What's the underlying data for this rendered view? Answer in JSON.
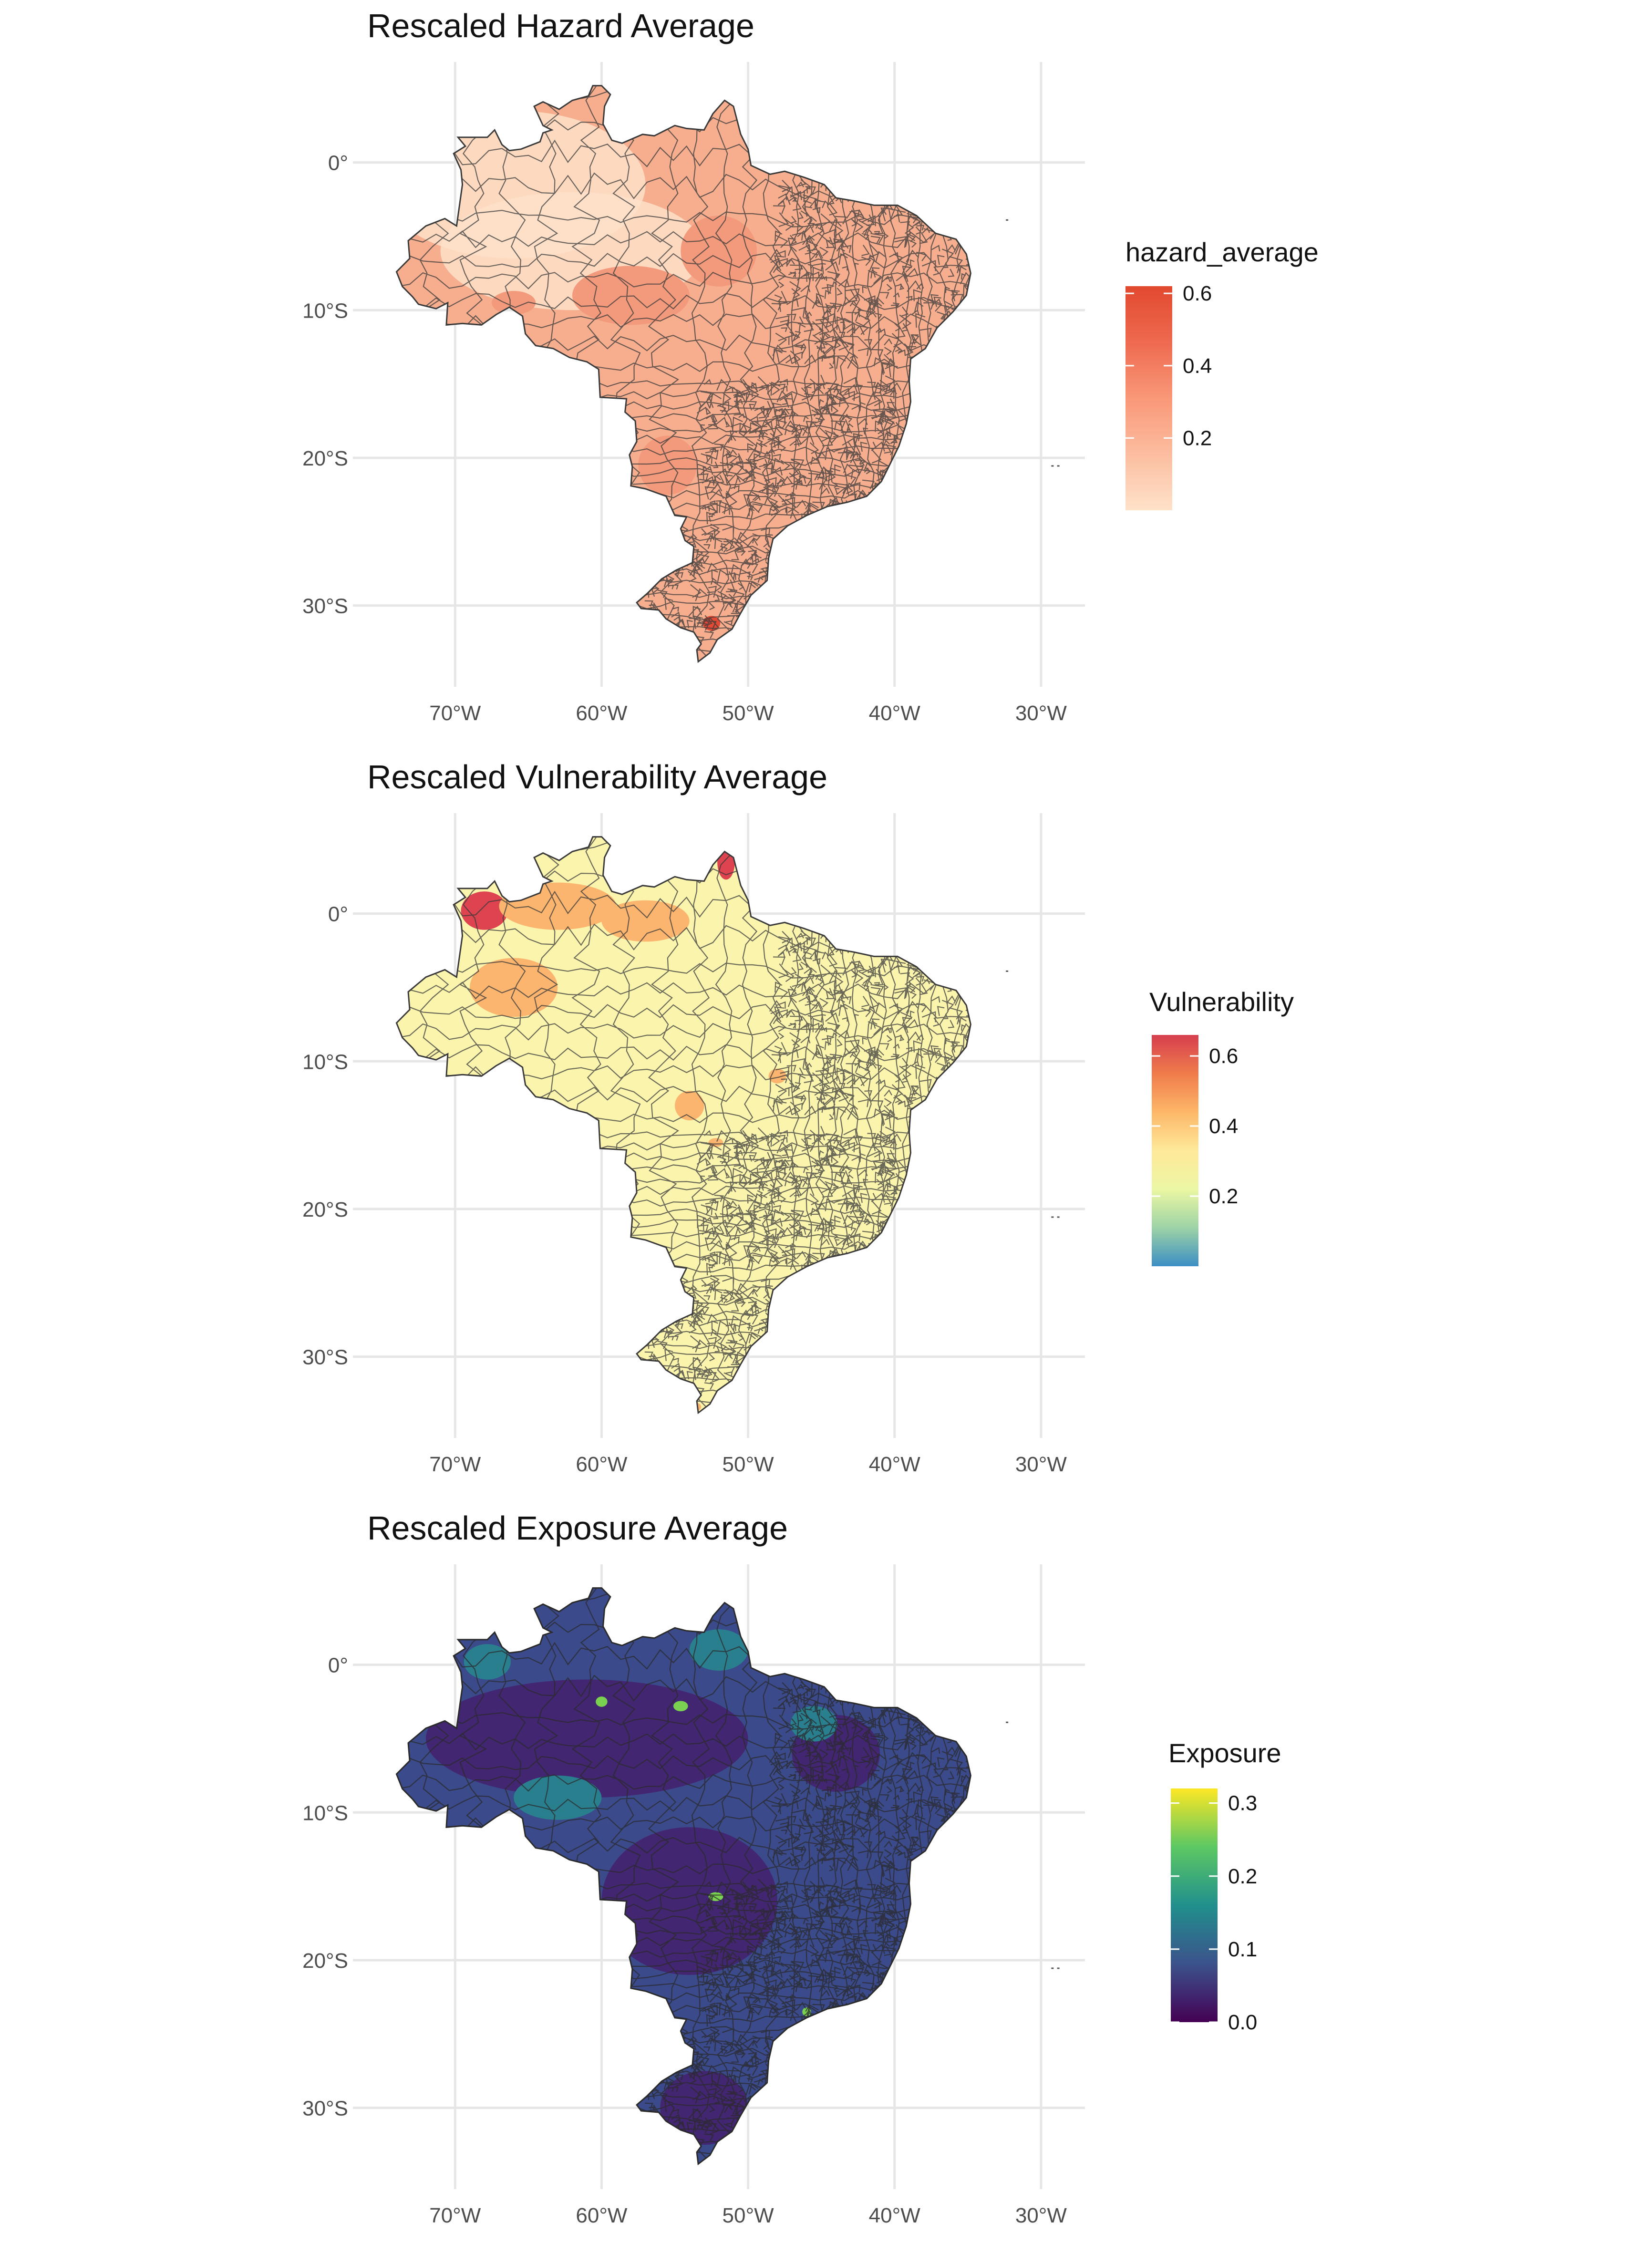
{
  "panels": [
    {
      "id": "hazard",
      "title": "Rescaled Hazard Average",
      "legend_title": "hazard_average",
      "legend_ticks": [
        "0.2",
        "0.4",
        "0.6"
      ],
      "legend_tick_values": [
        0.2,
        0.4,
        0.6
      ],
      "legend_range": [
        0.0,
        0.62
      ],
      "colormap": [
        "#fee2c9",
        "#fcbda0",
        "#f99878",
        "#ee6a50",
        "#e2492f"
      ],
      "fill_base": "#f6ae8f",
      "fill_low": "#fde0c8",
      "fill_mid": "#f39a7c",
      "fill_high": "#e14b35",
      "border_color": "#3a3a3a"
    },
    {
      "id": "vulnerability",
      "title": "Rescaled Vulnerability Average",
      "legend_title": "Vulnerability",
      "legend_ticks": [
        "0.2",
        "0.4",
        "0.6"
      ],
      "legend_tick_values": [
        0.2,
        0.4,
        0.6
      ],
      "legend_range": [
        0.0,
        0.66
      ],
      "colormap": [
        "#3b8fc4",
        "#9dd3a6",
        "#ecf7a3",
        "#fee99a",
        "#fdb768",
        "#f07b4b",
        "#d63f4f"
      ],
      "fill_base": "#fbf4ad",
      "fill_low": "#fef8b8",
      "fill_mid": "#fbb56f",
      "fill_high": "#de4350",
      "border_color": "#3a3a3a"
    },
    {
      "id": "exposure",
      "title": "Rescaled Exposure Average",
      "legend_title": "Exposure",
      "legend_ticks": [
        "0.0",
        "0.1",
        "0.2",
        "0.3"
      ],
      "legend_tick_values": [
        0.0,
        0.1,
        0.2,
        0.3
      ],
      "legend_range": [
        0.0,
        0.32
      ],
      "colormap": [
        "#440154",
        "#3b528b",
        "#21908d",
        "#5dc863",
        "#fde725"
      ],
      "fill_base": "#3a4a8a",
      "fill_low": "#45206c",
      "fill_mid": "#2a7f8e",
      "fill_high": "#7ad151",
      "border_color": "#2a2a2a"
    }
  ],
  "axes": {
    "x_ticks": [
      "70°W",
      "60°W",
      "50°W",
      "40°W",
      "30°W"
    ],
    "x_values": [
      -70,
      -60,
      -50,
      -40,
      -30
    ],
    "y_ticks": [
      "0°",
      "10°S",
      "20°S",
      "30°S"
    ],
    "y_values": [
      0,
      -10,
      -20,
      -30
    ],
    "lon_range": [
      -76,
      -27
    ],
    "lat_range": [
      -35.5,
      6.8
    ],
    "gridlines": true
  },
  "region": "Brazil",
  "outline": [
    [
      -60.0,
      5.2
    ],
    [
      -59.4,
      4.6
    ],
    [
      -59.8,
      3.8
    ],
    [
      -59.9,
      2.6
    ],
    [
      -59.3,
      1.5
    ],
    [
      -58.6,
      1.3
    ],
    [
      -57.2,
      1.9
    ],
    [
      -56.4,
      1.8
    ],
    [
      -55.0,
      2.5
    ],
    [
      -54.2,
      2.3
    ],
    [
      -53.0,
      2.2
    ],
    [
      -52.4,
      3.3
    ],
    [
      -51.6,
      4.2
    ],
    [
      -51.0,
      3.8
    ],
    [
      -50.5,
      1.9
    ],
    [
      -50.0,
      0.9
    ],
    [
      -49.8,
      -0.2
    ],
    [
      -48.5,
      -0.8
    ],
    [
      -47.5,
      -0.6
    ],
    [
      -46.2,
      -1.0
    ],
    [
      -44.8,
      -1.5
    ],
    [
      -44.0,
      -2.4
    ],
    [
      -42.8,
      -2.6
    ],
    [
      -41.4,
      -2.9
    ],
    [
      -39.8,
      -2.9
    ],
    [
      -38.5,
      -3.6
    ],
    [
      -37.2,
      -4.8
    ],
    [
      -35.8,
      -5.2
    ],
    [
      -35.1,
      -6.2
    ],
    [
      -34.8,
      -7.5
    ],
    [
      -35.1,
      -9.0
    ],
    [
      -36.0,
      -10.1
    ],
    [
      -37.1,
      -11.2
    ],
    [
      -37.9,
      -12.6
    ],
    [
      -38.9,
      -13.3
    ],
    [
      -39.0,
      -14.8
    ],
    [
      -38.9,
      -16.2
    ],
    [
      -39.2,
      -17.7
    ],
    [
      -39.7,
      -19.2
    ],
    [
      -40.3,
      -20.4
    ],
    [
      -40.9,
      -21.6
    ],
    [
      -41.9,
      -22.6
    ],
    [
      -43.2,
      -23.0
    ],
    [
      -44.6,
      -23.3
    ],
    [
      -46.0,
      -23.9
    ],
    [
      -47.3,
      -24.6
    ],
    [
      -48.3,
      -25.5
    ],
    [
      -48.6,
      -26.8
    ],
    [
      -48.7,
      -28.3
    ],
    [
      -49.8,
      -29.3
    ],
    [
      -50.5,
      -30.5
    ],
    [
      -51.1,
      -31.6
    ],
    [
      -52.1,
      -32.3
    ],
    [
      -52.6,
      -33.2
    ],
    [
      -53.4,
      -33.8
    ],
    [
      -53.5,
      -33.0
    ],
    [
      -53.2,
      -32.6
    ],
    [
      -53.7,
      -31.8
    ],
    [
      -54.6,
      -31.5
    ],
    [
      -55.6,
      -30.9
    ],
    [
      -56.1,
      -30.3
    ],
    [
      -57.3,
      -30.2
    ],
    [
      -57.6,
      -29.8
    ],
    [
      -56.9,
      -29.2
    ],
    [
      -55.9,
      -28.2
    ],
    [
      -54.9,
      -27.6
    ],
    [
      -53.8,
      -27.1
    ],
    [
      -53.7,
      -26.0
    ],
    [
      -54.3,
      -25.6
    ],
    [
      -54.6,
      -24.8
    ],
    [
      -54.2,
      -24.0
    ],
    [
      -55.0,
      -23.9
    ],
    [
      -55.6,
      -22.6
    ],
    [
      -57.0,
      -22.1
    ],
    [
      -58.0,
      -21.9
    ],
    [
      -57.9,
      -20.6
    ],
    [
      -58.1,
      -19.8
    ],
    [
      -57.6,
      -18.9
    ],
    [
      -57.7,
      -17.5
    ],
    [
      -58.4,
      -16.9
    ],
    [
      -58.3,
      -16.0
    ],
    [
      -60.1,
      -15.9
    ],
    [
      -60.2,
      -14.0
    ],
    [
      -61.0,
      -13.5
    ],
    [
      -62.2,
      -13.2
    ],
    [
      -63.3,
      -12.6
    ],
    [
      -64.5,
      -12.4
    ],
    [
      -65.2,
      -11.6
    ],
    [
      -65.4,
      -10.4
    ],
    [
      -66.3,
      -9.8
    ],
    [
      -67.2,
      -10.3
    ],
    [
      -68.2,
      -11.0
    ],
    [
      -69.5,
      -10.9
    ],
    [
      -70.6,
      -11.0
    ],
    [
      -70.5,
      -9.5
    ],
    [
      -71.3,
      -9.9
    ],
    [
      -72.5,
      -9.6
    ],
    [
      -72.9,
      -9.1
    ],
    [
      -73.6,
      -8.4
    ],
    [
      -74.0,
      -7.4
    ],
    [
      -73.1,
      -6.5
    ],
    [
      -73.2,
      -5.3
    ],
    [
      -72.0,
      -4.3
    ],
    [
      -70.7,
      -3.8
    ],
    [
      -69.9,
      -4.3
    ],
    [
      -69.5,
      -1.5
    ],
    [
      -69.6,
      -0.5
    ],
    [
      -70.1,
      0.6
    ],
    [
      -69.3,
      1.1
    ],
    [
      -69.8,
      1.7
    ],
    [
      -67.8,
      1.7
    ],
    [
      -67.3,
      2.2
    ],
    [
      -66.8,
      1.2
    ],
    [
      -66.3,
      0.8
    ],
    [
      -65.5,
      0.9
    ],
    [
      -64.2,
      1.4
    ],
    [
      -64.0,
      2.0
    ],
    [
      -63.4,
      2.2
    ],
    [
      -64.0,
      2.5
    ],
    [
      -64.6,
      3.8
    ],
    [
      -64.0,
      4.1
    ],
    [
      -62.9,
      3.6
    ],
    [
      -62.0,
      4.2
    ],
    [
      -60.9,
      4.5
    ],
    [
      -60.6,
      5.2
    ]
  ],
  "islands": [
    {
      "lon": -32.4,
      "lat": -3.85
    },
    {
      "lon": -29.3,
      "lat": -20.5
    },
    {
      "lon": -28.9,
      "lat": -20.5
    }
  ]
}
